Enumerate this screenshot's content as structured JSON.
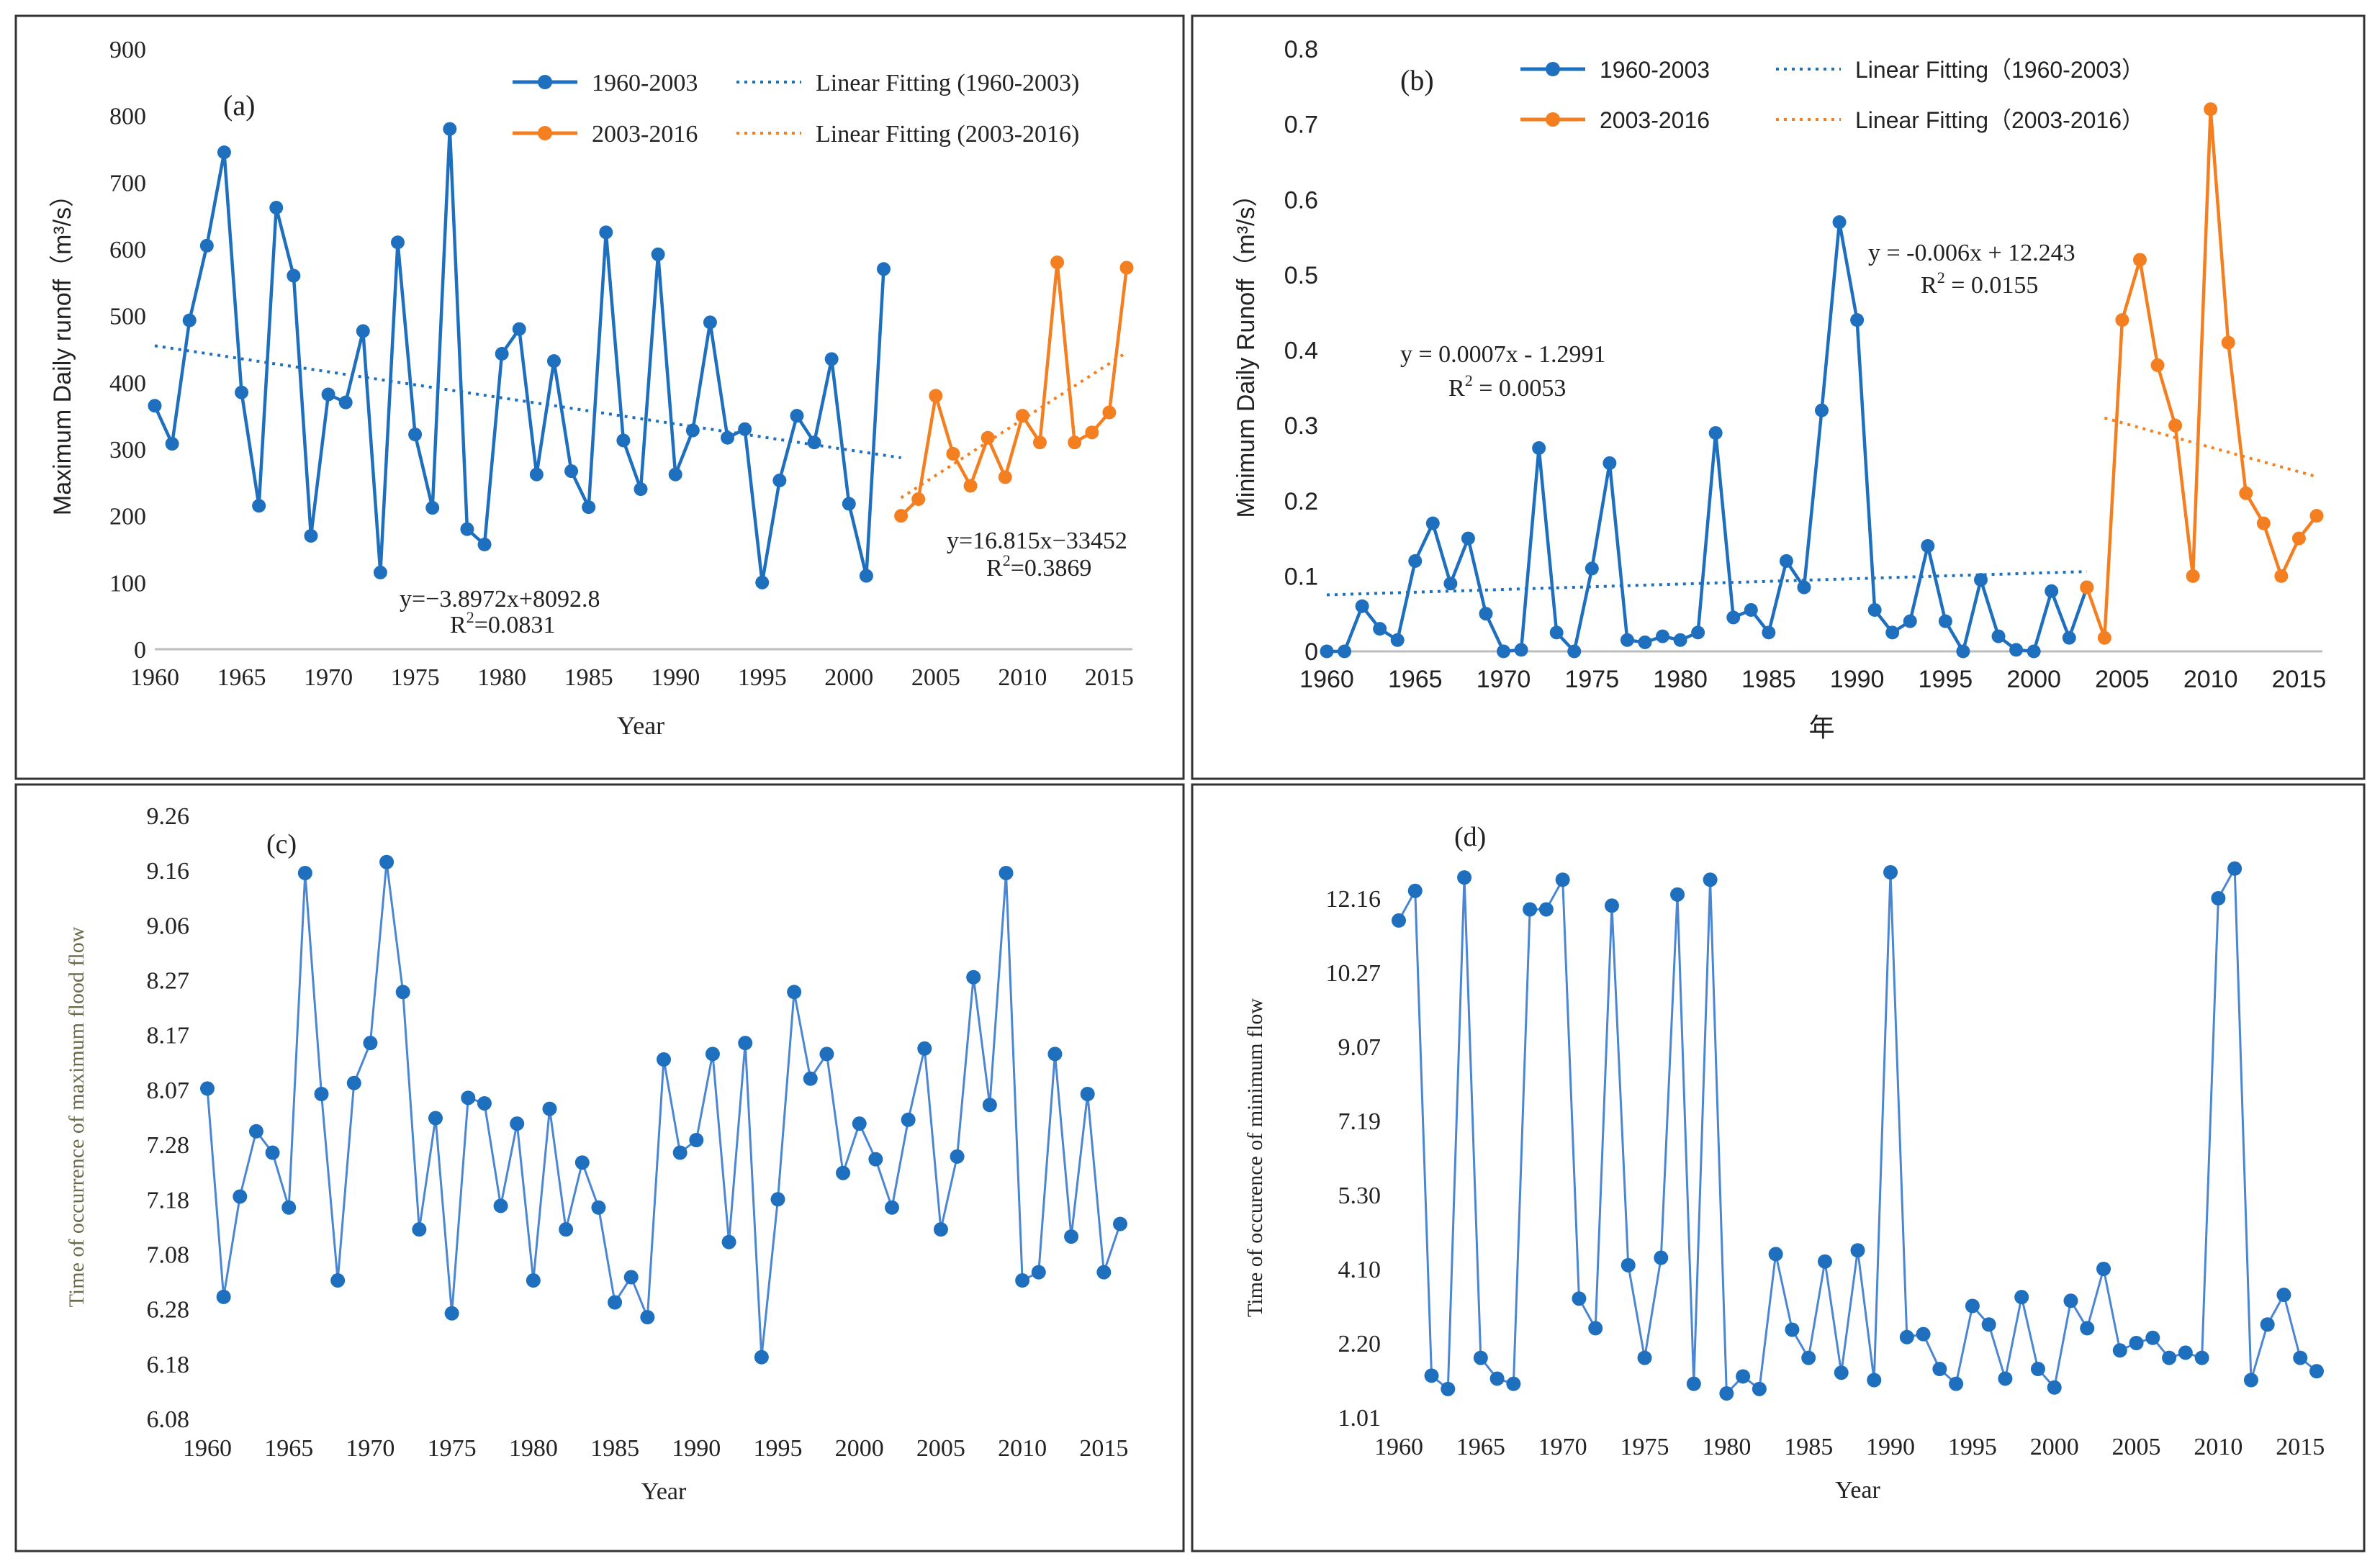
{
  "chart_data": [
    {
      "panel": "a",
      "type": "line",
      "panel_label": "(a)",
      "xlabel": "Year",
      "ylabel": "Maximum Daily runoff（m³/s）",
      "xlim": [
        1960,
        2016
      ],
      "ylim": [
        0,
        900
      ],
      "x_ticks": [
        1960,
        1965,
        1970,
        1975,
        1980,
        1985,
        1990,
        1995,
        2000,
        2005,
        2010,
        2015
      ],
      "y_ticks": [
        0,
        100,
        200,
        300,
        400,
        500,
        600,
        700,
        800,
        900
      ],
      "y_tick_labels": [
        "0",
        "100",
        "200",
        "300",
        "400",
        "500",
        "600",
        "700",
        "800",
        "900"
      ],
      "series": [
        {
          "name": "1960-2003",
          "color": "#1f6fbf",
          "x": [
            1960,
            1961,
            1962,
            1963,
            1964,
            1965,
            1966,
            1967,
            1968,
            1969,
            1970,
            1971,
            1972,
            1973,
            1974,
            1975,
            1976,
            1977,
            1978,
            1979,
            1980,
            1981,
            1982,
            1983,
            1984,
            1985,
            1986,
            1987,
            1988,
            1989,
            1990,
            1991,
            1992,
            1993,
            1994,
            1995,
            1996,
            1997,
            1998,
            1999,
            2000,
            2001,
            2002
          ],
          "values": [
            365,
            308,
            493,
            605,
            745,
            385,
            215,
            662,
            560,
            170,
            382,
            370,
            477,
            115,
            610,
            322,
            212,
            780,
            180,
            157,
            443,
            480,
            262,
            432,
            267,
            213,
            625,
            313,
            240,
            592,
            262,
            328,
            490,
            317,
            330,
            100,
            253,
            350,
            310,
            435,
            218,
            110,
            570
          ]
        },
        {
          "name": "2003-2016",
          "color": "#f47f20",
          "x": [
            2003,
            2004,
            2005,
            2006,
            2007,
            2008,
            2009,
            2010,
            2011,
            2012,
            2013,
            2014,
            2015,
            2016
          ],
          "values": [
            200,
            225,
            380,
            293,
            245,
            317,
            258,
            350,
            310,
            580,
            310,
            325,
            355,
            572
          ]
        }
      ],
      "fits": [
        {
          "name": "Linear Fitting (1960-2003)",
          "color": "#1f6fbf",
          "x": [
            1960,
            2003
          ],
          "values": [
            455,
            287
          ]
        },
        {
          "name": "Linear Fitting (2003-2016)",
          "color": "#f47f20",
          "x": [
            2003,
            2016
          ],
          "values": [
            227,
            445
          ]
        }
      ],
      "legend": {
        "s1": "1960-2003",
        "s2": "2003-2016",
        "f1": "Linear Fitting (1960-2003)",
        "f2": "Linear Fitting (2003-2016)"
      },
      "annotations": {
        "eq1": "y=−3.8972x+8092.8",
        "r1_prefix": "R",
        "r1_sup": "2",
        "r1_val": "=0.0831",
        "eq2": "y=16.815x−33452",
        "r2_prefix": "R",
        "r2_sup": "2",
        "r2_val": "=0.3869"
      }
    },
    {
      "panel": "b",
      "type": "line",
      "panel_label": "(b)",
      "xlabel": "年",
      "ylabel": "Minimum Daily Runoff（m³/s）",
      "xlim": [
        1960,
        2016
      ],
      "ylim": [
        0,
        0.8
      ],
      "x_ticks": [
        1960,
        1965,
        1970,
        1975,
        1980,
        1985,
        1990,
        1995,
        2000,
        2005,
        2010,
        2015
      ],
      "y_ticks": [
        0,
        0.1,
        0.2,
        0.3,
        0.4,
        0.5,
        0.6,
        0.7,
        0.8
      ],
      "y_tick_labels": [
        "0",
        "0.1",
        "0.2",
        "0.3",
        "0.4",
        "0.5",
        "0.6",
        "0.7",
        "0.8"
      ],
      "series": [
        {
          "name": "1960-2003",
          "color": "#1f6fbf",
          "x": [
            1960,
            1961,
            1962,
            1963,
            1964,
            1965,
            1966,
            1967,
            1968,
            1969,
            1970,
            1971,
            1972,
            1973,
            1974,
            1975,
            1976,
            1977,
            1978,
            1979,
            1980,
            1981,
            1982,
            1983,
            1984,
            1985,
            1986,
            1987,
            1988,
            1989,
            1990,
            1991,
            1992,
            1993,
            1994,
            1995,
            1996,
            1997,
            1998,
            1999,
            2000,
            2001,
            2002,
            2003
          ],
          "values": [
            0,
            0,
            0.06,
            0.03,
            0.015,
            0.12,
            0.17,
            0.09,
            0.15,
            0.05,
            0,
            0.002,
            0.27,
            0.025,
            0,
            0.11,
            0.25,
            0.015,
            0.012,
            0.02,
            0.015,
            0.025,
            0.29,
            0.045,
            0.055,
            0.025,
            0.12,
            0.085,
            0.32,
            0.57,
            0.44,
            0.055,
            0.025,
            0.04,
            0.14,
            0.04,
            0,
            0.095,
            0.02,
            0.002,
            0,
            0.08,
            0.018,
            0.085
          ]
        },
        {
          "name": "2003-2016",
          "color": "#f47f20",
          "x": [
            2003,
            2004,
            2005,
            2006,
            2007,
            2008,
            2009,
            2010,
            2011,
            2012,
            2013,
            2014,
            2015,
            2016
          ],
          "values": [
            0.085,
            0.018,
            0.44,
            0.52,
            0.38,
            0.3,
            0.1,
            0.72,
            0.41,
            0.21,
            0.17,
            0.1,
            0.15,
            0.18
          ]
        }
      ],
      "fits": [
        {
          "name": "Linear Fitting（1960-2003）",
          "color": "#1f6fbf",
          "x": [
            1960,
            2003
          ],
          "values": [
            0.075,
            0.106
          ]
        },
        {
          "name": "Linear Fitting（2003-2016）",
          "color": "#f47f20",
          "x": [
            2004,
            2016
          ],
          "values": [
            0.31,
            0.232
          ]
        }
      ],
      "legend": {
        "s1": "1960-2003",
        "s2": "2003-2016",
        "f1": "Linear Fitting（1960-2003）",
        "f2": "Linear Fitting（2003-2016）"
      },
      "annotations": {
        "eq1": "y = 0.0007x - 1.2991",
        "r1_prefix": "R",
        "r1_sup": "2",
        "r1_val": " = 0.0053",
        "eq2": "y = -0.006x + 12.243",
        "r2_prefix": "R",
        "r2_sup": "2",
        "r2_val": " = 0.0155"
      }
    },
    {
      "panel": "c",
      "type": "line",
      "panel_label": "(c)",
      "xlabel": "Year",
      "ylabel": "Time of occurrence of maximum flood flow",
      "xlim": [
        1960,
        2016
      ],
      "ylim": [
        6.08,
        9.26
      ],
      "note": "y-axis labels are categorical month.day values placed at equal spacing",
      "x_ticks": [
        1960,
        1965,
        1970,
        1975,
        1980,
        1985,
        1990,
        1995,
        2000,
        2005,
        2010,
        2015
      ],
      "y_tick_labels": [
        "6.08",
        "6.18",
        "6.28",
        "7.08",
        "7.18",
        "7.28",
        "8.07",
        "8.17",
        "8.27",
        "9.06",
        "9.16",
        "9.26"
      ],
      "series": [
        {
          "name": "Time of occurrence of maximum flood flow",
          "color": "#4a86d2",
          "x": [
            1960,
            1961,
            1962,
            1963,
            1964,
            1965,
            1966,
            1967,
            1968,
            1969,
            1970,
            1971,
            1972,
            1973,
            1974,
            1975,
            1976,
            1977,
            1978,
            1979,
            1980,
            1981,
            1982,
            1983,
            1984,
            1985,
            1986,
            1987,
            1988,
            1989,
            1990,
            1991,
            1992,
            1993,
            1994,
            1995,
            1996,
            1997,
            1998,
            1999,
            2000,
            2001,
            2002,
            2003,
            2004,
            2005,
            2006,
            2007,
            2008,
            2009,
            2010,
            2011,
            2012,
            2013,
            2014,
            2015,
            2016
          ],
          "level_index": [
            6.02,
            2.22,
            4.05,
            5.24,
            4.85,
            3.85,
            9.95,
            5.92,
            2.52,
            6.12,
            6.85,
            10.15,
            7.78,
            3.45,
            5.48,
            1.92,
            5.85,
            5.75,
            3.88,
            5.38,
            2.52,
            5.65,
            3.45,
            4.67,
            3.85,
            2.12,
            2.58,
            1.85,
            6.55,
            4.85,
            5.08,
            6.65,
            3.22,
            6.85,
            1.12,
            4.0,
            7.78,
            6.2,
            6.65,
            4.48,
            5.38,
            4.73,
            3.85,
            5.45,
            6.75,
            3.45,
            4.78,
            8.05,
            5.72,
            9.95,
            2.52,
            2.67,
            6.65,
            3.32,
            5.92,
            2.67,
            3.55
          ]
        }
      ]
    },
    {
      "panel": "d",
      "type": "line",
      "panel_label": "(d)",
      "xlabel": "Year",
      "ylabel": "Time of occurence of minimum flow",
      "xlim": [
        1960,
        2016
      ],
      "ylim": [
        1.01,
        12.16
      ],
      "note": "y-axis labels are categorical month.day values placed at equal spacing",
      "x_ticks": [
        1960,
        1965,
        1970,
        1975,
        1980,
        1985,
        1990,
        1995,
        2000,
        2005,
        2010,
        2015
      ],
      "y_tick_labels": [
        "1.01",
        "2.20",
        "4.10",
        "5.30",
        "7.19",
        "9.07",
        "10.27",
        "12.16"
      ],
      "series": [
        {
          "name": "Time of occurence of minimum flow",
          "color": "#4a86d2",
          "x": [
            1960,
            1961,
            1962,
            1963,
            1964,
            1965,
            1966,
            1967,
            1968,
            1969,
            1970,
            1971,
            1972,
            1973,
            1974,
            1975,
            1976,
            1977,
            1978,
            1979,
            1980,
            1981,
            1982,
            1983,
            1984,
            1985,
            1986,
            1987,
            1988,
            1989,
            1990,
            1991,
            1992,
            1993,
            1994,
            1995,
            1996,
            1997,
            1998,
            1999,
            2000,
            2001,
            2002,
            2003,
            2004,
            2005,
            2006,
            2007,
            2008,
            2009,
            2010,
            2011,
            2012,
            2013,
            2014,
            2015,
            2016
          ],
          "level_index": [
            6.7,
            7.1,
            0.56,
            0.38,
            7.28,
            0.8,
            0.52,
            0.45,
            6.85,
            6.85,
            7.25,
            1.6,
            1.2,
            6.9,
            2.05,
            0.8,
            2.15,
            7.05,
            0.45,
            7.25,
            0.32,
            0.55,
            0.38,
            2.2,
            1.18,
            0.8,
            2.1,
            0.6,
            2.25,
            0.5,
            7.35,
            1.08,
            1.12,
            0.65,
            0.45,
            1.5,
            1.25,
            0.52,
            1.62,
            0.65,
            0.4,
            1.57,
            1.2,
            2.0,
            0.9,
            1.0,
            1.07,
            0.8,
            0.87,
            0.8,
            7.0,
            7.4,
            0.5,
            1.25,
            1.65,
            0.8,
            0.62
          ]
        }
      ]
    }
  ]
}
